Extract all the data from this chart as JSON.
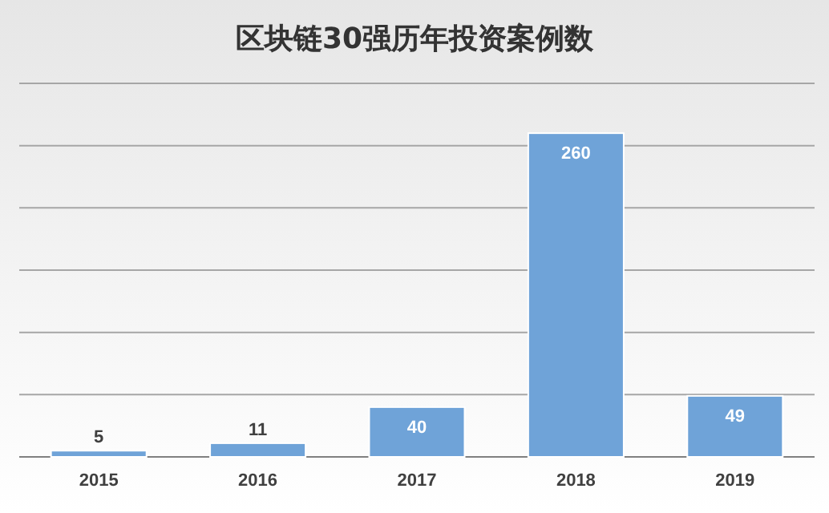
{
  "chart_data": {
    "type": "bar",
    "title": "区块链30强历年投资案例数",
    "categories": [
      "2015",
      "2016",
      "2017",
      "2018",
      "2019"
    ],
    "values": [
      5,
      11,
      40,
      260,
      49
    ],
    "color": "#6fa3d8",
    "ylim": [
      0,
      300
    ],
    "yticks": [
      {
        "value": 0,
        "label": null
      },
      {
        "value": 50,
        "label": null
      },
      {
        "value": 100,
        "label": null
      },
      {
        "value": 150,
        "label": null
      },
      {
        "value": 200,
        "label": null
      },
      {
        "value": 250,
        "label": null
      },
      {
        "value": 300,
        "label": null
      }
    ],
    "grid": "y",
    "data_labels": true
  }
}
